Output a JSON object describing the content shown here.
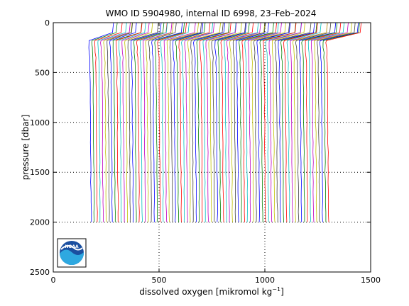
{
  "chart_data": {
    "type": "line",
    "title": "WMO ID 5904980, internal ID 6998, 23–Feb–2024",
    "xlabel_main": "dissolved oxygen [mikromol kg",
    "xlabel_sup": "−1",
    "xlabel_end": "]",
    "ylabel": "pressure [dbar]",
    "xlim": [
      0,
      1500
    ],
    "ylim": [
      0,
      2500
    ],
    "y_reversed": true,
    "grid": "dotted",
    "x_ticks": [
      "0",
      "500",
      "1000",
      "1500"
    ],
    "y_ticks": [
      "0",
      "500",
      "1000",
      "1500",
      "2000",
      "2500"
    ],
    "profiles": {
      "count": 80,
      "deep_start": 175,
      "deep_step": 14.2,
      "max_pressure": 2000,
      "shape_note": "offset profile waterfall; each profile shifted right of the previous one",
      "colors": [
        "#0000ff",
        "#008000",
        "#ff0000",
        "#00bfbf",
        "#bf00bf",
        "#bfbf00",
        "#404040"
      ]
    }
  },
  "logo": {
    "text": "NOAA"
  }
}
